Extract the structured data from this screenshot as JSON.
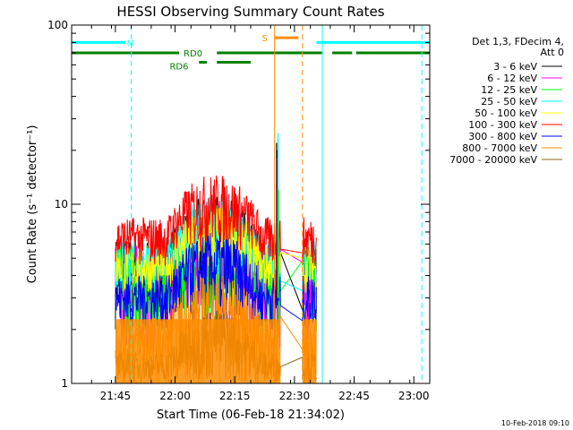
{
  "chart_data": {
    "type": "line",
    "title": "HESSI Observing Summary Count Rates",
    "xlabel": "Start Time (06-Feb-18 21:34:02)",
    "ylabel": "Count Rate (s⁻¹ detector⁻¹)",
    "y_scale": "log",
    "ylim": [
      1,
      100
    ],
    "yticks": [
      {
        "value": 1,
        "label": "1"
      },
      {
        "value": 10,
        "label": "10"
      },
      {
        "value": 100,
        "label": "100"
      }
    ],
    "xlim_min": [
      0,
      90
    ],
    "xticks": [
      {
        "min": 11,
        "label": "21:45"
      },
      {
        "min": 26,
        "label": "22:00"
      },
      {
        "min": 41,
        "label": "22:15"
      },
      {
        "min": 56,
        "label": "22:30"
      },
      {
        "min": 71,
        "label": "22:45"
      },
      {
        "min": 86,
        "label": "23:00"
      }
    ],
    "legend_placement": "right",
    "legend_header": [
      "Det 1,3, FDecim 4,",
      "Att 0"
    ],
    "series": [
      {
        "name": "3 - 6 keV",
        "color": "#000000",
        "base": 5.0,
        "lo": 2.0,
        "hi": 6.5
      },
      {
        "name": "6 - 12 keV",
        "color": "#ff00ff",
        "base": 4.0,
        "lo": 1.5,
        "hi": 6.0
      },
      {
        "name": "12 - 25 keV",
        "color": "#00ff00",
        "base": 4.5,
        "lo": 1.8,
        "hi": 6.0
      },
      {
        "name": "25 - 50 keV",
        "color": "#00ffff",
        "base": 4.2,
        "lo": 3.2,
        "hi": 6.5
      },
      {
        "name": "50 - 100 keV",
        "color": "#ffff00",
        "base": 4.2,
        "lo": 3.2,
        "hi": 5.8
      },
      {
        "name": "100 - 300 keV",
        "color": "#ff0000",
        "base": 6.0,
        "lo": 4.5,
        "hi": 8.5
      },
      {
        "name": "300 - 800 keV",
        "color": "#0000ff",
        "base": 3.0,
        "lo": 2.0,
        "hi": 4.0
      },
      {
        "name": "800 - 7000 keV",
        "color": "#ff8c00",
        "base": 1.6,
        "lo": 1.0,
        "hi": 2.4
      },
      {
        "name": "7000 - 20000 keV",
        "color": "#8b6914",
        "base": 1.2,
        "lo": 1.0,
        "hi": 1.5
      }
    ],
    "data_windows_min": [
      [
        11,
        52.5
      ],
      [
        58,
        61.5
      ]
    ],
    "data_start_min": 11,
    "data_end_min": 61.5,
    "enhancement_min": [
      24,
      48
    ],
    "spike_min": 51.5,
    "flags": [
      {
        "label": "N",
        "color": "#00ffff",
        "y": 80,
        "segments": [
          [
            0,
            13.5
          ],
          [
            61.5,
            90
          ]
        ],
        "label_at": 14.7
      },
      {
        "label": "RD0",
        "color": "#008000",
        "y": 70,
        "segments": [
          [
            0,
            27
          ],
          [
            36.5,
            63
          ],
          [
            65.5,
            70.5
          ],
          [
            71.5,
            90
          ]
        ],
        "label_at": 30.5
      },
      {
        "label": "RD6",
        "color": "#008000",
        "y": 62,
        "segments": [
          [
            32,
            34
          ],
          [
            36.5,
            45
          ]
        ],
        "label_at": 27
      },
      {
        "label": "S",
        "color": "#ff8c00",
        "y": 85,
        "segments": [
          [
            51,
            57
          ]
        ],
        "label_at": 48.5
      }
    ],
    "vlines": [
      {
        "min": 0,
        "color": "#00ffff",
        "style": "solid"
      },
      {
        "min": 15,
        "color": "#00ffff",
        "style": "dashed"
      },
      {
        "min": 51,
        "color": "#ff8c00",
        "style": "solid"
      },
      {
        "min": 58,
        "color": "#ff8c00",
        "style": "dashed"
      },
      {
        "min": 63,
        "color": "#00ffff",
        "style": "solid"
      },
      {
        "min": 88,
        "color": "#00ffff",
        "style": "dashed"
      }
    ]
  },
  "footer_date": "10-Feb-2018 09:10"
}
